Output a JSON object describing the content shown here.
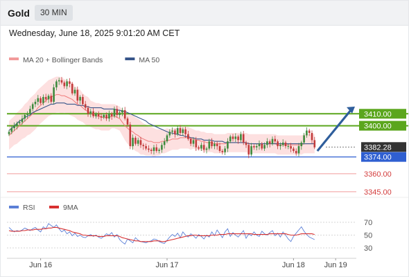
{
  "header": {
    "symbol": "Gold",
    "timeframe": "30 MIN"
  },
  "timestamp": "Wednesday, June 18, 2025 9:01:20 AM CET",
  "colors": {
    "up": "#3d8a3d",
    "down": "#c23b3b",
    "band": "#fcd3d3",
    "ma20": "#f07a7a",
    "ma50": "#38568a",
    "resistance": "#5ba61d",
    "support": "#2f5fd1",
    "target": "#f29a9a",
    "current": "#333333",
    "arrow": "#2f5e9c",
    "rsi": "#5b7fd6",
    "rsi_ma": "#d83030"
  },
  "chart_data": [
    {
      "type": "candlestick",
      "legend": [
        {
          "name": "MA 20 + Bollinger Bands",
          "color": "#f29a9a"
        },
        {
          "name": "MA 50",
          "color": "#38568a"
        }
      ],
      "ylim": [
        3338,
        3450
      ],
      "x_ticks": [
        {
          "label": "Jun 16",
          "index": 12
        },
        {
          "label": "Jun 17",
          "index": 60
        },
        {
          "label": "Jun 18",
          "index": 108
        },
        {
          "label": "Jun 19",
          "index": 124
        }
      ],
      "levels": [
        {
          "value": 3410.0,
          "label": "3410.00",
          "kind": "resistance"
        },
        {
          "value": 3400.0,
          "label": "3400.00",
          "kind": "resistance"
        },
        {
          "value": 3382.28,
          "label": "3382.28",
          "kind": "current"
        },
        {
          "value": 3374.0,
          "label": "3374.00",
          "kind": "support"
        },
        {
          "value": 3360.0,
          "label": "3360.00",
          "kind": "target"
        },
        {
          "value": 3345.0,
          "label": "3345.00",
          "kind": "target"
        }
      ],
      "close": [
        3395,
        3398,
        3400,
        3402,
        3403,
        3406,
        3409,
        3410,
        3414,
        3418,
        3420,
        3423,
        3419,
        3424,
        3422,
        3425,
        3420,
        3432,
        3437,
        3438,
        3436,
        3433,
        3437,
        3435,
        3427,
        3430,
        3421,
        3424,
        3418,
        3415,
        3410,
        3412,
        3408,
        3410,
        3408,
        3407,
        3409,
        3406,
        3410,
        3408,
        3414,
        3409,
        3411,
        3413,
        3406,
        3401,
        3383,
        3390,
        3385,
        3388,
        3384,
        3383,
        3381,
        3380,
        3379,
        3382,
        3379,
        3380,
        3384,
        3387,
        3392,
        3395,
        3396,
        3393,
        3398,
        3394,
        3397,
        3393,
        3389,
        3385,
        3388,
        3382,
        3381,
        3384,
        3380,
        3381,
        3387,
        3383,
        3385,
        3383,
        3379,
        3378,
        3381,
        3387,
        3391,
        3389,
        3391,
        3388,
        3393,
        3386,
        3384,
        3376,
        3383,
        3382,
        3383,
        3385,
        3381,
        3384,
        3387,
        3385,
        3389,
        3387,
        3383,
        3384,
        3386,
        3383,
        3383,
        3381,
        3379,
        3377,
        3383,
        3386,
        3392,
        3396,
        3394,
        3388,
        3382
      ],
      "ma20": [
        3392,
        3394,
        3396,
        3398,
        3400,
        3402,
        3404,
        3406,
        3408,
        3410,
        3412,
        3415,
        3417,
        3419,
        3421,
        3423,
        3424,
        3425,
        3426,
        3426,
        3425,
        3425,
        3424,
        3423,
        3422,
        3420,
        3418,
        3417,
        3415,
        3413,
        3412,
        3410,
        3409,
        3408,
        3408,
        3407,
        3407,
        3407,
        3407,
        3408,
        3408,
        3407,
        3406,
        3403,
        3400,
        3398,
        3396,
        3395,
        3393,
        3392,
        3390,
        3389,
        3388,
        3387,
        3387,
        3386,
        3386,
        3386,
        3387,
        3387,
        3388,
        3388,
        3389,
        3389,
        3389,
        3390,
        3390,
        3390,
        3390,
        3389,
        3389,
        3388,
        3388,
        3387,
        3387,
        3386,
        3386,
        3386,
        3385,
        3385,
        3385,
        3385,
        3385,
        3386,
        3386,
        3386,
        3386,
        3386,
        3386,
        3386,
        3386,
        3385,
        3385,
        3385,
        3385,
        3385,
        3385,
        3385,
        3385,
        3385,
        3385,
        3385,
        3384,
        3384,
        3384,
        3384,
        3384,
        3384,
        3384,
        3384,
        3384,
        3384,
        3385,
        3385,
        3385,
        3385,
        3385
      ],
      "ma50": [
        3396,
        3398,
        3400,
        3402,
        3404,
        3405,
        3407,
        3408,
        3409,
        3411,
        3412,
        3413,
        3414,
        3415,
        3416,
        3417,
        3418,
        3418,
        3419,
        3419,
        3419,
        3419,
        3418,
        3418,
        3418,
        3418,
        3417,
        3417,
        3417,
        3416,
        3416,
        3415,
        3415,
        3415,
        3415,
        3415,
        3414,
        3414,
        3414,
        3414,
        3414,
        3413,
        3413,
        3412,
        3412,
        3411,
        3410,
        3409,
        3408,
        3407,
        3406,
        3405,
        3404,
        3402,
        3401,
        3400,
        3399,
        3398,
        3397,
        3396,
        3395,
        3394,
        3394,
        3393,
        3393,
        3392,
        3392,
        3391,
        3391,
        3390,
        3390,
        3389,
        3389,
        3389,
        3388,
        3388,
        3388,
        3388,
        3387,
        3387,
        3387,
        3387,
        3386,
        3386,
        3386,
        3386,
        3386,
        3386,
        3386,
        3386,
        3386,
        3385,
        3385,
        3385,
        3385,
        3385,
        3385,
        3385,
        3385,
        3385,
        3385,
        3385,
        3385,
        3385,
        3385,
        3385,
        3385,
        3385,
        3385,
        3385,
        3385,
        3385,
        3385,
        3385,
        3385,
        3385,
        3385
      ],
      "band_half_width": [
        12,
        12,
        12,
        13,
        13,
        13,
        14,
        14,
        15,
        15,
        15,
        15,
        15,
        15,
        15,
        15,
        15,
        15,
        15,
        15,
        15,
        14,
        14,
        14,
        14,
        13,
        13,
        13,
        12,
        12,
        12,
        11,
        11,
        11,
        11,
        11,
        11,
        11,
        11,
        10,
        10,
        10,
        10,
        11,
        12,
        13,
        13,
        14,
        14,
        14,
        14,
        13,
        13,
        12,
        12,
        12,
        11,
        11,
        10,
        10,
        10,
        9,
        9,
        9,
        9,
        9,
        9,
        9,
        9,
        9,
        8,
        8,
        8,
        8,
        8,
        8,
        8,
        8,
        8,
        8,
        8,
        8,
        8,
        8,
        8,
        8,
        8,
        8,
        8,
        8,
        8,
        8,
        8,
        8,
        8,
        8,
        8,
        8,
        8,
        8,
        8,
        8,
        8,
        8,
        8,
        8,
        8,
        8,
        8,
        8,
        8,
        8,
        8,
        8,
        8,
        8,
        8
      ],
      "arrow_to": 3412
    },
    {
      "type": "line",
      "legend": [
        {
          "name": "RSI",
          "color": "#5b7fd6"
        },
        {
          "name": "9MA",
          "color": "#d83030"
        }
      ],
      "ylim": [
        20,
        80
      ],
      "y_ticks": [
        70,
        50,
        30
      ],
      "series": [
        {
          "values": [
            62,
            58,
            55,
            57,
            56,
            58,
            61,
            59,
            57,
            60,
            62,
            58,
            55,
            63,
            60,
            68,
            65,
            62,
            66,
            60,
            55,
            58,
            52,
            55,
            49,
            53,
            48,
            50,
            47,
            46,
            49,
            51,
            48,
            50,
            47,
            45,
            48,
            52,
            50,
            54,
            47,
            51,
            43,
            39,
            36,
            44,
            41,
            38,
            46,
            42,
            40,
            39,
            38,
            40,
            41,
            44,
            43,
            40,
            38,
            37,
            42,
            47,
            51,
            48,
            53,
            46,
            55,
            50,
            47,
            52,
            49,
            45,
            51,
            48,
            44,
            50,
            47,
            55,
            49,
            58,
            52,
            46,
            55,
            60,
            48,
            54,
            50,
            47,
            52,
            57,
            45,
            52,
            49,
            55,
            50,
            48,
            56,
            52,
            50,
            54,
            57,
            49,
            53,
            47,
            55,
            50,
            44,
            40,
            48,
            53,
            58,
            63,
            56,
            51,
            47,
            45,
            43
          ]
        },
        {
          "values": [
            57,
            56,
            56,
            56,
            56,
            57,
            57,
            58,
            58,
            58,
            59,
            59,
            59,
            60,
            60,
            61,
            61,
            62,
            62,
            61,
            60,
            59,
            58,
            57,
            55,
            54,
            53,
            52,
            50,
            50,
            49,
            49,
            49,
            49,
            48,
            48,
            48,
            49,
            49,
            49,
            49,
            49,
            48,
            46,
            45,
            44,
            43,
            42,
            41,
            41,
            40,
            40,
            40,
            40,
            40,
            41,
            41,
            41,
            40,
            40,
            41,
            42,
            43,
            44,
            45,
            46,
            47,
            48,
            49,
            49,
            50,
            50,
            49,
            49,
            49,
            49,
            49,
            50,
            50,
            50,
            51,
            51,
            51,
            52,
            52,
            52,
            52,
            52,
            52,
            52,
            52,
            52,
            52,
            51,
            51,
            51,
            51,
            51,
            51,
            52,
            52,
            52,
            52,
            52,
            52,
            52,
            51,
            50,
            50,
            50,
            51,
            52,
            52,
            52,
            52,
            52,
            51
          ]
        }
      ]
    }
  ]
}
